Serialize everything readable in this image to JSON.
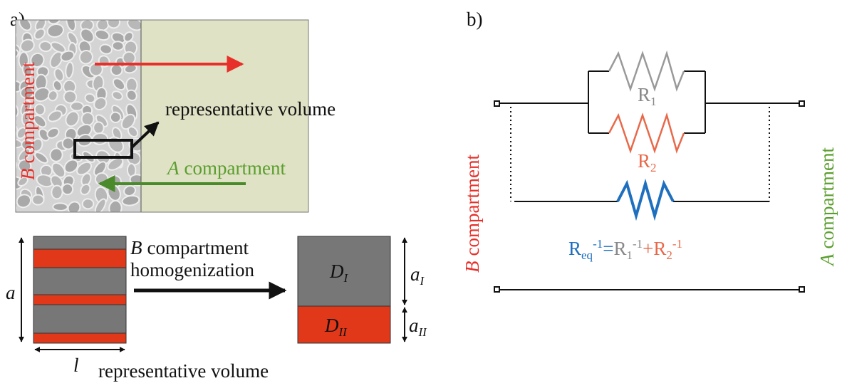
{
  "panel_a": {
    "label": "a)",
    "top": {
      "b_compartment": {
        "letter": "B",
        "text": "compartment"
      },
      "representative_volume": "representative volume",
      "a_compartment": {
        "letter": "A",
        "text": "compartment"
      }
    },
    "bottom": {
      "homogenization": {
        "letter": "B",
        "line1": "compartment",
        "line2": "homogenization"
      },
      "a": "a",
      "l": "l",
      "representative_volume": "representative volume",
      "d1": {
        "base": "D",
        "sub": "I"
      },
      "d2": {
        "base": "D",
        "sub": "II"
      },
      "a1": {
        "base": "a",
        "sub": "I"
      },
      "a2": {
        "base": "a",
        "sub": "II"
      }
    }
  },
  "panel_b": {
    "label": "b)",
    "r1": {
      "base": "R",
      "sub": "1"
    },
    "r2": {
      "base": "R",
      "sub": "2"
    },
    "req": [
      {
        "base": "R",
        "sub": "eq",
        "sup": "-1"
      },
      {
        "base": "="
      },
      {
        "base": "R",
        "sub": "1",
        "sup": "-1"
      },
      {
        "base": "+R",
        "sub": "2",
        "sup": "-1"
      }
    ],
    "left": {
      "letter": "B",
      "text": "compartment"
    },
    "right": {
      "letter": "A",
      "text": "compartment"
    }
  }
}
